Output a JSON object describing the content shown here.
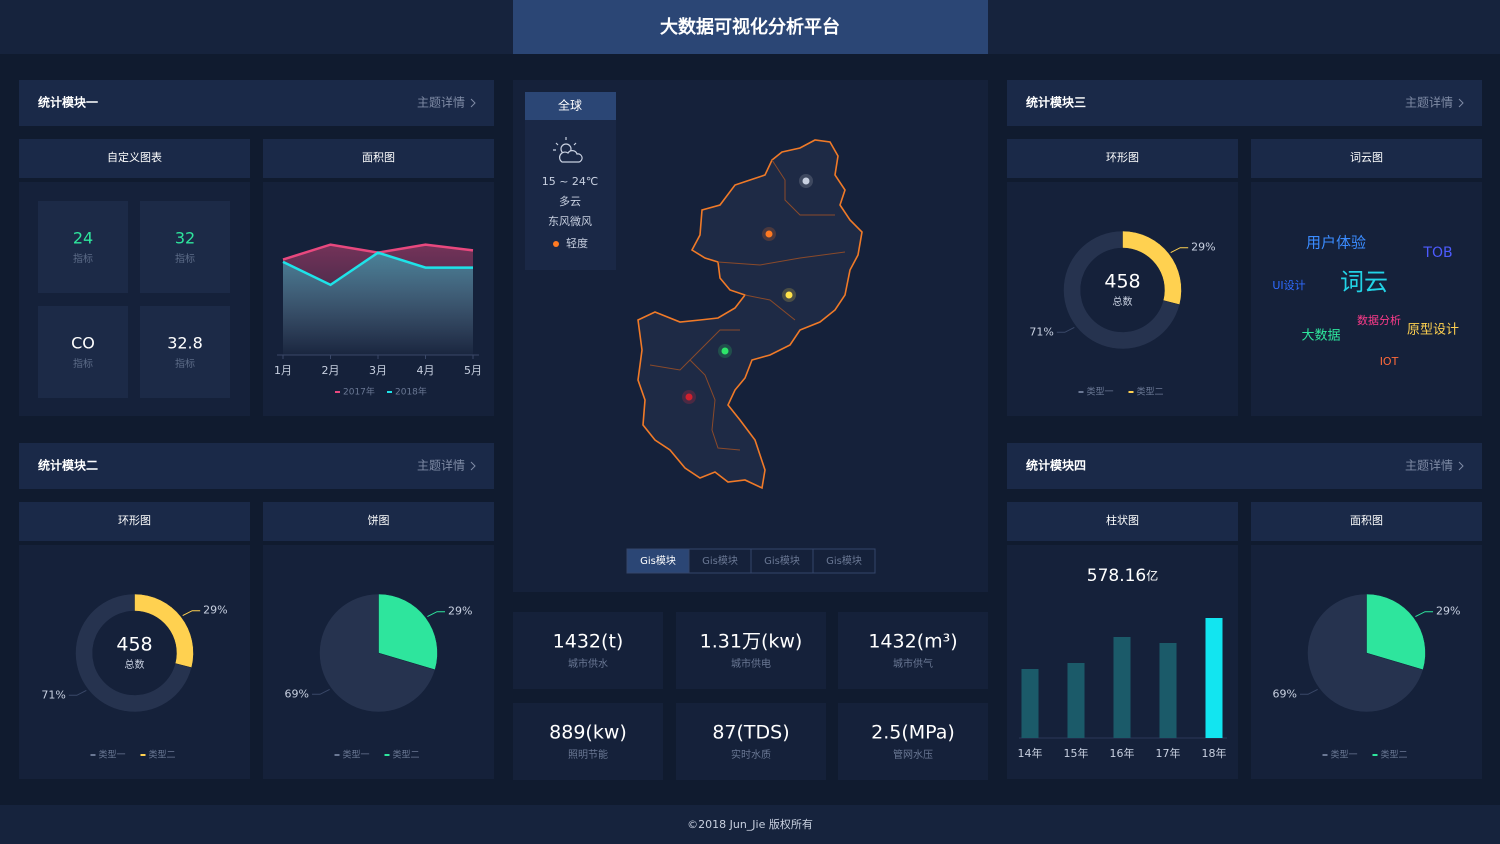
{
  "header": {
    "title": "大数据可视化分析平台"
  },
  "modules": [
    {
      "title": "统计模块一",
      "link": "主题详情",
      "panels": [
        {
          "title": "自定义图表",
          "indicators": [
            {
              "value": 24,
              "label": "指标",
              "color": "#2ee59d"
            },
            {
              "value": 32,
              "label": "指标",
              "color": "#2ee59d"
            },
            {
              "value": "CO",
              "label": "指标",
              "color": "#ffffff"
            },
            {
              "value": 32.8,
              "label": "指标",
              "color": "#ffffff"
            }
          ]
        },
        {
          "title": "面积图",
          "chart": {
            "type": "area",
            "categories": [
              "1月",
              "2月",
              "3月",
              "4月",
              "5月"
            ],
            "ylim": [
              0,
              100
            ],
            "series": [
              {
                "name": "2017年",
                "color": "#e8487e",
                "values": [
                  83,
                  96,
                  89,
                  96,
                  91
                ]
              },
              {
                "name": "2018年",
                "color": "#1ee3e8",
                "values": [
                  81,
                  61,
                  89,
                  76,
                  76
                ]
              }
            ]
          }
        }
      ]
    },
    {
      "title": "统计模块二",
      "link": "主题详情",
      "panels": [
        {
          "title": "环形图",
          "chart": {
            "type": "donut",
            "center_value": 458,
            "center_label": "总数",
            "categories": [
              "类型一",
              "类型二"
            ],
            "values": [
              71,
              29
            ],
            "value_labels": [
              "71%",
              "29%"
            ],
            "colors": [
              "#26334f",
              "#ffd150"
            ]
          }
        },
        {
          "title": "饼图",
          "chart": {
            "type": "pie",
            "categories": [
              "类型一",
              "类型二"
            ],
            "values": [
              69,
              29
            ],
            "value_labels": [
              "69%",
              "29%"
            ],
            "colors": [
              "#26334f",
              "#2ee59d"
            ]
          }
        }
      ]
    },
    {
      "title": "统计模块三",
      "link": "主题详情",
      "panels": [
        {
          "title": "环形图",
          "chart": {
            "type": "donut",
            "center_value": 458,
            "center_label": "总数",
            "categories": [
              "类型一",
              "类型二"
            ],
            "values": [
              71,
              29
            ],
            "value_labels": [
              "71%",
              "29%"
            ],
            "colors": [
              "#26334f",
              "#ffd150"
            ]
          }
        },
        {
          "title": "词云图",
          "words": [
            {
              "text": "用户体验",
              "color": "#3b8cff"
            },
            {
              "text": "TOB",
              "color": "#4d5bff"
            },
            {
              "text": "UI设计",
              "color": "#2f6bff"
            },
            {
              "text": "词云",
              "color": "#22d3e6"
            },
            {
              "text": "数据分析",
              "color": "#ff3b8b"
            },
            {
              "text": "原型设计",
              "color": "#ffd150"
            },
            {
              "text": "大数据",
              "color": "#2ee59d"
            },
            {
              "text": "IOT",
              "color": "#ff6a3a"
            }
          ]
        }
      ]
    },
    {
      "title": "统计模块四",
      "link": "主题详情",
      "panels": [
        {
          "title": "柱状图",
          "chart": {
            "type": "bar",
            "total": "578.16",
            "unit": "亿",
            "categories": [
              "14年",
              "15年",
              "16年",
              "17年",
              "18年"
            ],
            "values": [
              69,
              75,
              101,
              95,
              120
            ],
            "ylim": [
              0,
              130
            ],
            "colors": [
              "#1b5a69",
              "#1b5a69",
              "#1b5a69",
              "#1b5a69",
              "#12e5f0"
            ]
          }
        },
        {
          "title": "面积图",
          "chart": {
            "type": "pie",
            "categories": [
              "类型一",
              "类型二"
            ],
            "values": [
              69,
              29
            ],
            "value_labels": [
              "69%",
              "29%"
            ],
            "colors": [
              "#26334f",
              "#2ee59d"
            ]
          }
        }
      ]
    }
  ],
  "map": {
    "region": "全球",
    "weather": {
      "temp": "15 ~ 24℃",
      "sky": "多云",
      "wind": "东风微风",
      "air": "轻度"
    },
    "tabs": [
      "Gis模块",
      "Gis模块",
      "Gis模块",
      "Gis模块"
    ]
  },
  "stats": [
    {
      "value": "1432(t)",
      "label": "城市供水"
    },
    {
      "value": "1.31万(kw)",
      "label": "城市供电"
    },
    {
      "value": "1432(m³)",
      "label": "城市供气"
    },
    {
      "value": "889(kw)",
      "label": "照明节能"
    },
    {
      "value": "87(TDS)",
      "label": "实时水质"
    },
    {
      "value": "2.5(MPa)",
      "label": "管网水压"
    }
  ],
  "footer": "©2018 Jun_Jie 版权所有"
}
